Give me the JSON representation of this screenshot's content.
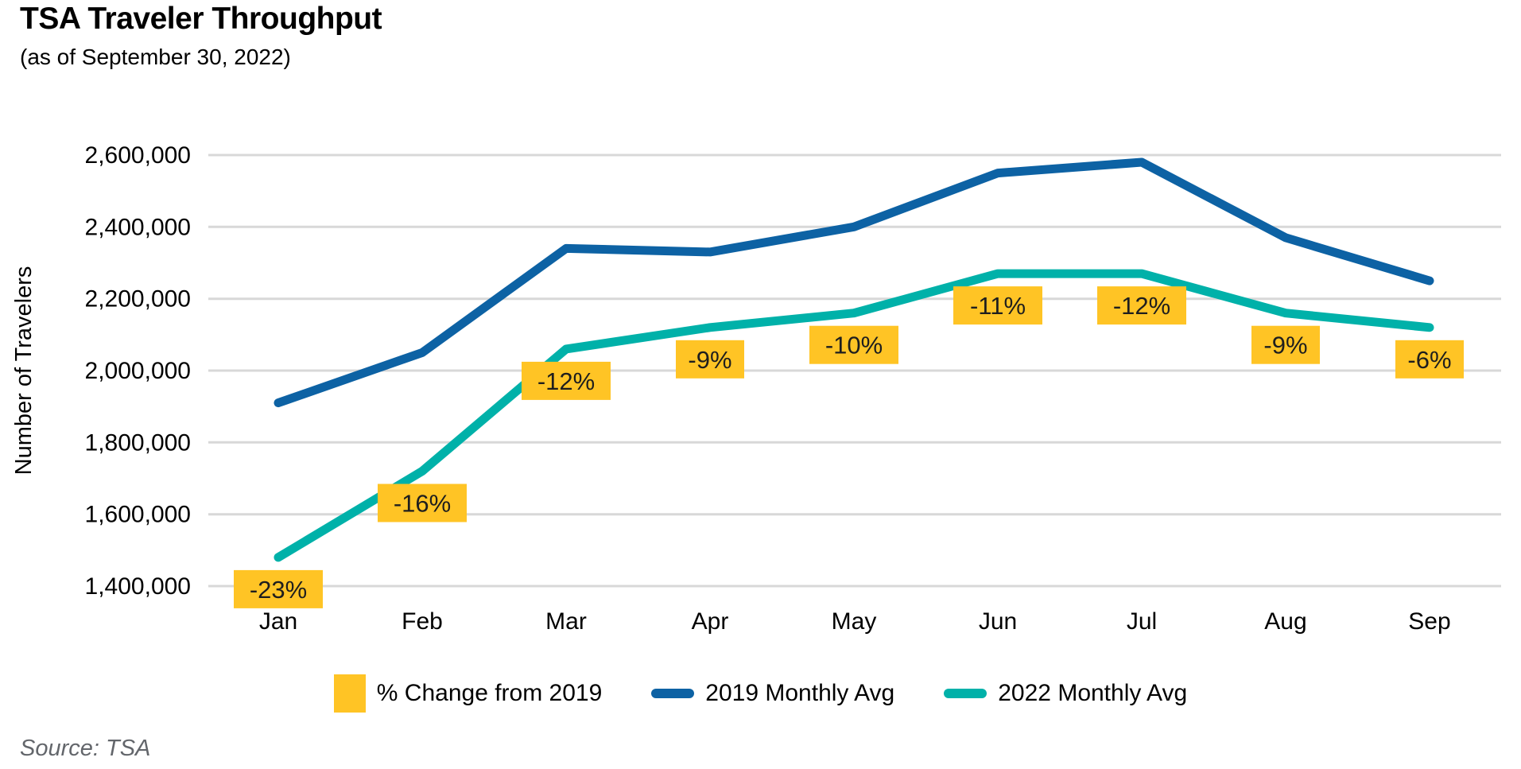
{
  "header": {
    "title": "TSA Traveler Throughput",
    "subtitle": "(as of September 30, 2022)"
  },
  "source": {
    "text": "Source: TSA"
  },
  "chart_data": {
    "type": "line",
    "title": "TSA Traveler Throughput",
    "subtitle": "(as of September 30, 2022)",
    "xlabel": "",
    "ylabel": "Number of Travelers",
    "categories": [
      "Jan",
      "Feb",
      "Mar",
      "Apr",
      "May",
      "Jun",
      "Jul",
      "Aug",
      "Sep"
    ],
    "ylim": [
      1400000,
      2600000
    ],
    "yticks": [
      1400000,
      1600000,
      1800000,
      2000000,
      2200000,
      2400000,
      2600000
    ],
    "grid": "horizontal",
    "legend_position": "bottom",
    "series": [
      {
        "name": "2019 Monthly Avg",
        "color": "#0D62A4",
        "values": [
          1910000,
          2050000,
          2340000,
          2330000,
          2400000,
          2550000,
          2580000,
          2370000,
          2250000
        ]
      },
      {
        "name": "2022 Monthly Avg",
        "color": "#00B1A9",
        "values": [
          1480000,
          1720000,
          2060000,
          2120000,
          2160000,
          2270000,
          2270000,
          2160000,
          2120000
        ]
      }
    ],
    "pct_change": {
      "name": "% Change from 2019",
      "box_color": "#FFC425",
      "text_color": "#1E1E1E",
      "values": [
        "-23%",
        "-16%",
        "-12%",
        "-9%",
        "-10%",
        "-11%",
        "-12%",
        "-9%",
        "-6%"
      ]
    },
    "legend": [
      {
        "label": "% Change from 2019",
        "swatch": "square",
        "color": "#FFC425"
      },
      {
        "label": "2019 Monthly Avg",
        "swatch": "line",
        "color": "#0D62A4"
      },
      {
        "label": "2022 Monthly Avg",
        "swatch": "line",
        "color": "#00B1A9"
      }
    ],
    "colors": {
      "gridline": "#D8D8D8",
      "axis_text": "#000000"
    }
  }
}
